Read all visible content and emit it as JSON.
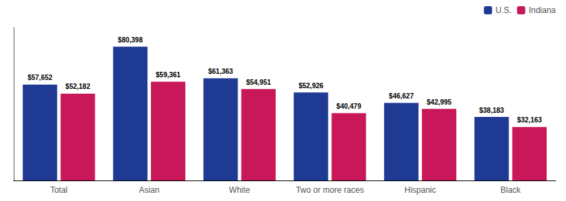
{
  "chart_data": {
    "type": "bar",
    "categories": [
      "Total",
      "Asian",
      "White",
      "Two or more races",
      "Hispanic",
      "Black"
    ],
    "series": [
      {
        "name": "U.S.",
        "color": "#1F3A93",
        "values": [
          57652,
          80398,
          61363,
          52926,
          46627,
          38183
        ],
        "value_labels": [
          "$57,652",
          "$80,398",
          "$61,363",
          "$52,926",
          "$46,627",
          "$38,183"
        ]
      },
      {
        "name": "Indiana",
        "color": "#C8185A",
        "values": [
          52182,
          59361,
          54951,
          40479,
          42995,
          32163
        ],
        "value_labels": [
          "$52,182",
          "$59,361",
          "$54,951",
          "$40,479",
          "$42,995",
          "$32,163"
        ]
      }
    ],
    "ylim": [
      0,
      92000
    ],
    "grid": false,
    "legend": "upper right",
    "data_labels": true,
    "tick_labels": "x",
    "background_color": "#ffffff"
  }
}
